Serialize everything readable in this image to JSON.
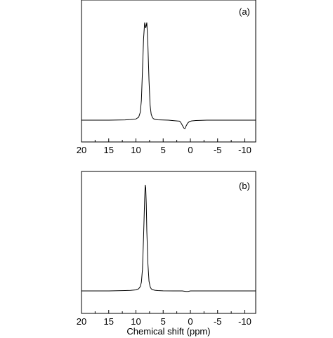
{
  "chart_data": [
    {
      "type": "line",
      "panel_label": "(a)",
      "xlabel": "",
      "ylabel": "",
      "xlim": [
        20,
        -12
      ],
      "x_reversed": true,
      "y_axis_ticks": false,
      "xticks": [
        20,
        15,
        10,
        5,
        0,
        -5,
        -10
      ],
      "xtick_labels": [
        "20",
        "15",
        "10",
        "5",
        "0",
        "-5",
        "-10"
      ],
      "ylim": [
        -0.15,
        1.15
      ],
      "series": [
        {
          "x": [
            20,
            15,
            12,
            11,
            10,
            9.5,
            9.2,
            9.0,
            8.8,
            8.6,
            8.4,
            8.2,
            8.0,
            7.8,
            7.6,
            7.4,
            7.2,
            7.0,
            6.8,
            6.5,
            6.0,
            5.0,
            4.0,
            3.0,
            2.0,
            1.8,
            1.5,
            1.2,
            1.0,
            0.8,
            0.5,
            0.2,
            -0.2,
            -1,
            -3,
            -5,
            -8,
            -10,
            -12
          ],
          "y": [
            0,
            0,
            0.003,
            0.006,
            0.012,
            0.03,
            0.08,
            0.2,
            0.5,
            0.82,
            0.985,
            0.93,
            0.985,
            0.75,
            0.4,
            0.15,
            0.06,
            0.03,
            0.015,
            0.008,
            0.004,
            0.002,
            0,
            -0.005,
            -0.01,
            -0.02,
            -0.05,
            -0.08,
            -0.085,
            -0.06,
            -0.03,
            -0.015,
            -0.008,
            -0.004,
            0,
            0,
            0,
            0,
            0
          ]
        }
      ]
    },
    {
      "type": "line",
      "panel_label": "(b)",
      "xlabel": "Chemical shift (ppm)",
      "ylabel": "",
      "xlim": [
        20,
        -12
      ],
      "x_reversed": true,
      "y_axis_ticks": false,
      "xticks": [
        20,
        15,
        10,
        5,
        0,
        -5,
        -10
      ],
      "xtick_labels": [
        "20",
        "15",
        "10",
        "5",
        "0",
        "-5",
        "-10"
      ],
      "ylim": [
        -0.15,
        1.15
      ],
      "series": [
        {
          "x": [
            20,
            15,
            12,
            11,
            10,
            9.5,
            9.2,
            9.0,
            8.8,
            8.6,
            8.4,
            8.3,
            8.2,
            8.1,
            8.0,
            7.8,
            7.6,
            7.4,
            7.2,
            7.0,
            6.5,
            6.0,
            5.0,
            3.0,
            1.5,
            0.8,
            0.4,
            0,
            -2,
            -5,
            -10,
            -12
          ],
          "y": [
            0,
            0,
            0.003,
            0.005,
            0.01,
            0.02,
            0.04,
            0.08,
            0.2,
            0.5,
            0.85,
            0.98,
            0.95,
            0.8,
            0.55,
            0.25,
            0.09,
            0.04,
            0.02,
            0.012,
            0.006,
            0.003,
            0.001,
            0,
            0,
            -0.005,
            -0.005,
            0,
            0,
            0,
            0,
            0
          ]
        }
      ]
    }
  ]
}
